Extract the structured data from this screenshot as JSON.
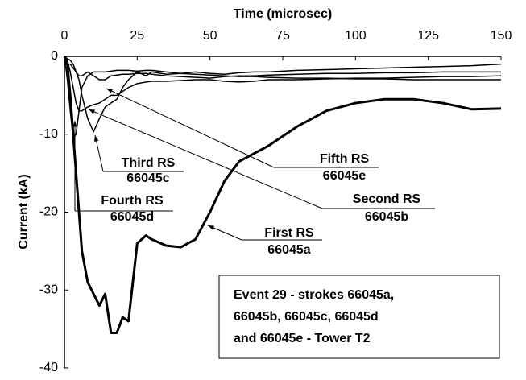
{
  "chart_data": {
    "type": "line",
    "x_label": "Time (microsec)",
    "y_label": "Current (kA)",
    "xlim": [
      0,
      150
    ],
    "xticks": [
      0,
      25,
      50,
      75,
      100,
      125,
      150
    ],
    "ylim": [
      -40,
      0
    ],
    "yticks": [
      -40,
      -30,
      -20,
      -10,
      0
    ],
    "x": [
      0,
      1,
      2,
      3,
      4,
      5,
      6,
      8,
      10,
      12,
      14,
      16,
      18,
      20,
      22,
      25,
      28,
      30,
      35,
      40,
      45,
      50,
      55,
      60,
      65,
      70,
      80,
      90,
      100,
      110,
      120,
      130,
      140,
      150
    ],
    "series": [
      {
        "name": "First RS",
        "id": "66045a",
        "color": "#000000",
        "width": 3,
        "values": [
          0,
          -1,
          -5,
          -10,
          -15,
          -20,
          -25,
          -29,
          -30.5,
          -32,
          -30.5,
          -35.5,
          -35.5,
          -33.5,
          -34,
          -24,
          -23,
          -23.5,
          -24.3,
          -24.5,
          -23.5,
          -20,
          -16,
          -13.5,
          -12.5,
          -11.5,
          -9,
          -7,
          -6,
          -5.5,
          -5.5,
          -6,
          -6.8,
          -6.7
        ]
      },
      {
        "name": "Second RS",
        "id": "66045b",
        "color": "#000000",
        "width": 1.5,
        "values": [
          0,
          -0.5,
          -2,
          -4,
          -6,
          -7,
          -7,
          -6.5,
          -6.2,
          -6,
          -5.5,
          -5,
          -5,
          -4.5,
          -4,
          -3.5,
          -3.3,
          -3.2,
          -3.2,
          -3.1,
          -3,
          -3,
          -3.2,
          -3.3,
          -3.2,
          -3,
          -3,
          -2.9,
          -2.8,
          -2.8,
          -2.7,
          -2.6,
          -2.6,
          -2.5
        ]
      },
      {
        "name": "Third RS",
        "id": "66045c",
        "color": "#000000",
        "width": 1.5,
        "values": [
          0,
          -0.3,
          -0.5,
          -1,
          -2,
          -3,
          -5,
          -8,
          -9.7,
          -8,
          -6.5,
          -6,
          -5.5,
          -4,
          -3,
          -2,
          -2.5,
          -2,
          -2.3,
          -2.2,
          -2,
          -2.2,
          -2.3,
          -2.1,
          -2,
          -2,
          -1.8,
          -1.7,
          -1.6,
          -1.5,
          -1.4,
          -1.3,
          -1.2,
          -1
        ]
      },
      {
        "name": "Fourth RS",
        "id": "66045d",
        "color": "#000000",
        "width": 1.5,
        "values": [
          0,
          -3,
          -7,
          -10.5,
          -10,
          -7,
          -4,
          -2.5,
          -2,
          -2,
          -2,
          -1.9,
          -1.8,
          -1.8,
          -1.8,
          -1.9,
          -1.8,
          -1.8,
          -2,
          -2.2,
          -2.3,
          -2.4,
          -2.5,
          -2.6,
          -2.6,
          -2.7,
          -2.8,
          -2.8,
          -2.9,
          -2.9,
          -3,
          -3,
          -3,
          -3
        ]
      },
      {
        "name": "Fifth RS",
        "id": "66045e",
        "color": "#000000",
        "width": 1.5,
        "values": [
          0,
          -1,
          -1,
          -1.5,
          -2,
          -2.5,
          -2.5,
          -2,
          -2.5,
          -3,
          -3,
          -2.5,
          -2.4,
          -2.3,
          -2.3,
          -2.2,
          -2.2,
          -2.3,
          -2.5,
          -2.6,
          -2.7,
          -2.8,
          -2.6,
          -2.5,
          -2.5,
          -2.4,
          -2.3,
          -2.2,
          -2.2,
          -2.1,
          -2.1,
          -2,
          -2,
          -2
        ]
      }
    ],
    "note_lines": [
      "Event 29 - strokes 66045a,",
      "66045b, 66045c, 66045d",
      "and 66045e - Tower T2"
    ]
  }
}
